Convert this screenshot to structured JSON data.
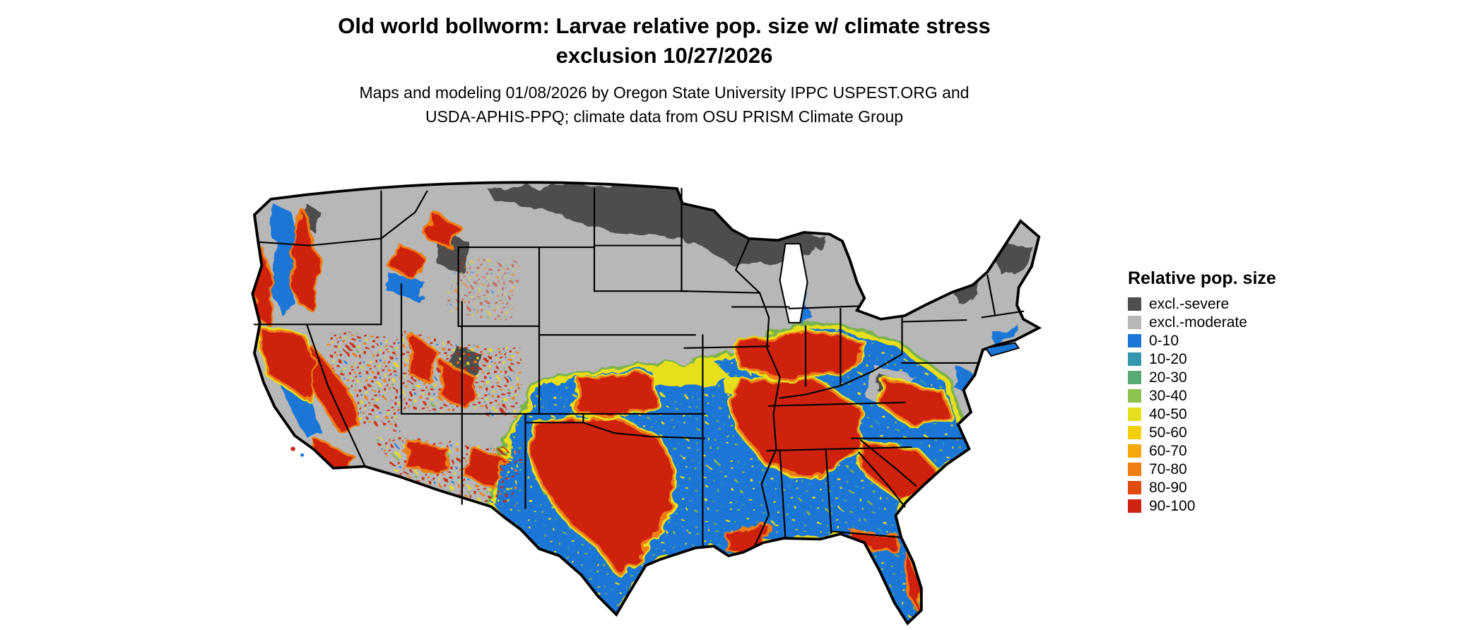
{
  "title": {
    "line1": "Old world bollworm: Larvae relative pop. size w/ climate stress",
    "line2": "exclusion 10/27/2026"
  },
  "subtitle": {
    "line1": "Maps and modeling 01/08/2026 by Oregon State University IPPC USPEST.ORG and",
    "line2": "USDA-APHIS-PPQ; climate data from OSU PRISM Climate Group"
  },
  "legend": {
    "title": "Relative pop. size",
    "items": [
      {
        "label": "excl.-severe",
        "color": "#4e4e4e"
      },
      {
        "label": "excl.-moderate",
        "color": "#b7b7b7"
      },
      {
        "label": "0-10",
        "color": "#1b76d6"
      },
      {
        "label": "10-20",
        "color": "#3397ad"
      },
      {
        "label": "20-30",
        "color": "#58ab73"
      },
      {
        "label": "30-40",
        "color": "#8cc44f"
      },
      {
        "label": "40-50",
        "color": "#e7df1d"
      },
      {
        "label": "50-60",
        "color": "#f2cf08"
      },
      {
        "label": "60-70",
        "color": "#f4a80c"
      },
      {
        "label": "70-80",
        "color": "#ee7d12"
      },
      {
        "label": "80-90",
        "color": "#e04b0e"
      },
      {
        "label": "90-100",
        "color": "#cf2410"
      }
    ]
  }
}
